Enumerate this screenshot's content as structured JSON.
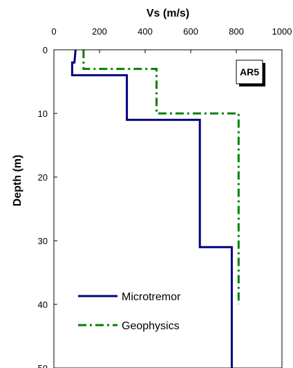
{
  "chart_data": {
    "type": "line",
    "xlabel": "Vs (m/s)",
    "ylabel": "Depth (m)",
    "xlim": [
      0,
      1000
    ],
    "ylim": [
      0,
      50
    ],
    "x_ticks": [
      0,
      200,
      400,
      600,
      800,
      1000
    ],
    "y_ticks": [
      0,
      10,
      20,
      30,
      40,
      50
    ],
    "x_axis_position": "top",
    "y_axis_inverted": true,
    "grid": false,
    "legend_position": "bottom-left",
    "badge": "AR5",
    "series": [
      {
        "name": "Microtremor",
        "color": "#000080",
        "line_style": "solid",
        "points": [
          [
            95,
            0
          ],
          [
            90,
            2
          ],
          [
            80,
            2
          ],
          [
            80,
            4
          ],
          [
            320,
            4
          ],
          [
            320,
            11
          ],
          [
            640,
            11
          ],
          [
            640,
            31
          ],
          [
            780,
            31
          ],
          [
            780,
            50
          ]
        ]
      },
      {
        "name": "Geophysics",
        "color": "#008000",
        "line_style": "dash-dot",
        "points": [
          [
            130,
            0
          ],
          [
            130,
            3
          ],
          [
            450,
            3
          ],
          [
            450,
            10
          ],
          [
            810,
            10
          ],
          [
            810,
            40
          ]
        ]
      }
    ]
  }
}
